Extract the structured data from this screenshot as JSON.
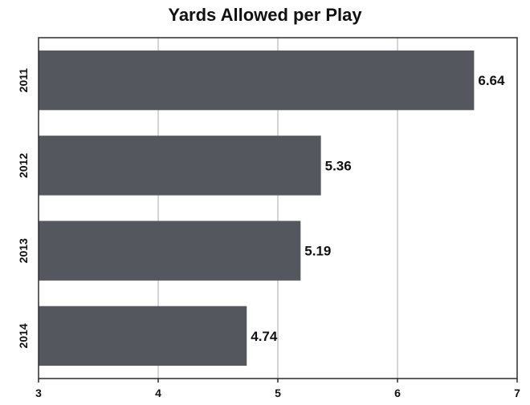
{
  "chart_data": {
    "type": "bar",
    "orientation": "horizontal",
    "title": "Yards Allowed per Play",
    "categories": [
      "2011",
      "2012",
      "2013",
      "2014"
    ],
    "values": [
      6.64,
      5.36,
      5.19,
      4.74
    ],
    "data_labels": [
      "6.64",
      "5.36",
      "5.19",
      "4.74"
    ],
    "xlim": [
      3,
      7
    ],
    "x_ticks": [
      3,
      4,
      5,
      6,
      7
    ],
    "x_tick_labels": [
      "3",
      "4",
      "5",
      "6",
      "7"
    ],
    "grid": "vertical",
    "bar_color": "#55575e",
    "legend": "none"
  }
}
